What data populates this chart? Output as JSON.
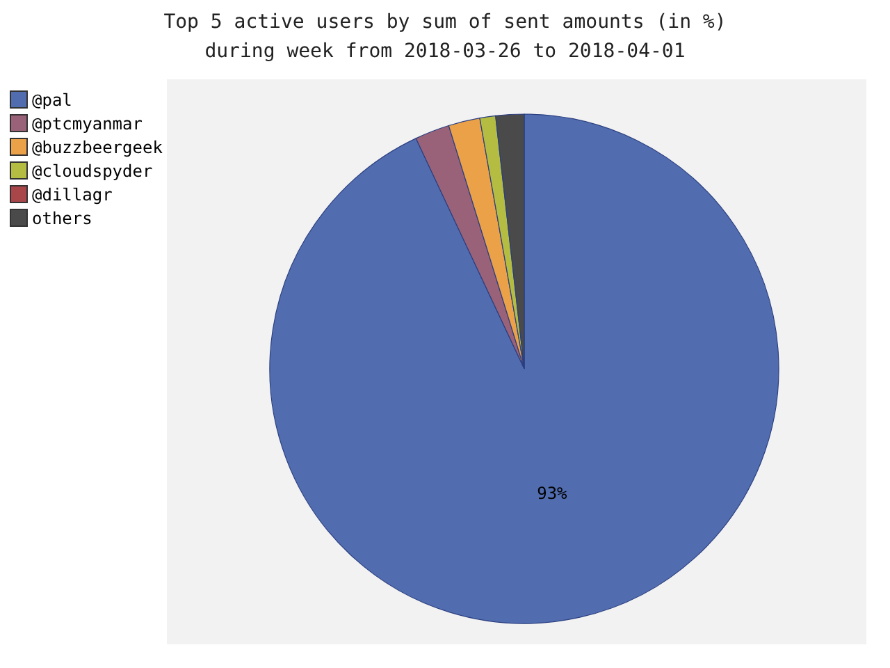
{
  "chart_data": {
    "type": "pie",
    "title": "Top 5 active users by sum of sent amounts (in %)\nduring week from 2018-03-26 to 2018-04-01",
    "categories": [
      "@pal",
      "@ptcmyanmar",
      "@buzzbeergeek",
      "@cloudspyder",
      "@dillagr",
      "others"
    ],
    "values": [
      93,
      2.2,
      2,
      1,
      null,
      1.8
    ],
    "colors": [
      "#516db0",
      "#9a6278",
      "#eaa148",
      "#b4bd42",
      "#a8464a",
      "#4a4a4a"
    ],
    "value_labels": [
      "93%",
      null,
      null,
      null,
      null,
      null
    ],
    "legend": "top left"
  }
}
